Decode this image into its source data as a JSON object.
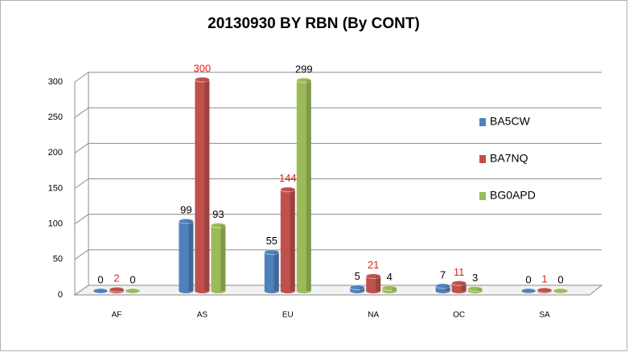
{
  "chart_data": {
    "type": "bar3d",
    "title": "20130930 BY RBN (By  CONT)",
    "categories": [
      "AF",
      "AS",
      "EU",
      "NA",
      "OC",
      "SA"
    ],
    "series": [
      {
        "name": "BA5CW",
        "color": "#4f81bd",
        "values": [
          0,
          99,
          55,
          5,
          7,
          0
        ]
      },
      {
        "name": "BA7NQ",
        "color": "#c0504d",
        "values": [
          2,
          300,
          144,
          21,
          11,
          1
        ]
      },
      {
        "name": "BG0APD",
        "color": "#9bbb59",
        "values": [
          0,
          93,
          299,
          4,
          3,
          0
        ]
      }
    ],
    "ylim": [
      0,
      300
    ],
    "yticks": [
      0,
      50,
      100,
      150,
      200,
      250,
      300
    ],
    "grid": true,
    "legend": "right"
  }
}
